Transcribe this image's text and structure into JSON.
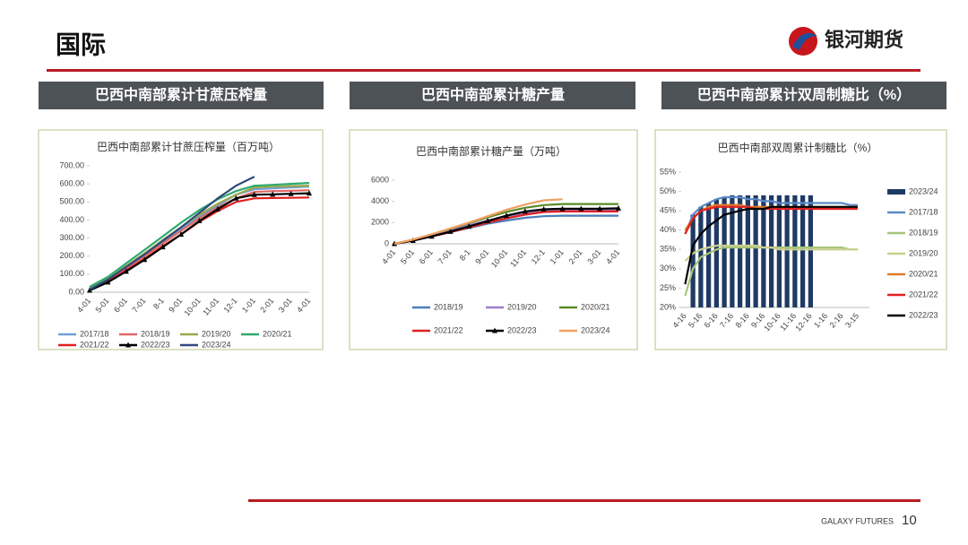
{
  "header": {
    "title": "国际",
    "logo": "银河期货"
  },
  "sections": [
    "巴西中南部累计甘蔗压榨量",
    "巴西中南部累计糖产量",
    "巴西中南部累计双周制糖比（%）"
  ],
  "footer": {
    "brand": "GALAXY FUTURES",
    "page": "10"
  },
  "chart_data": [
    {
      "type": "line",
      "title": "巴西中南部累计甘蔗压榨量（百万吨）",
      "categories": [
        "4-01",
        "5-01",
        "6-01",
        "7-01",
        "8-1",
        "9-01",
        "10-01",
        "11-01",
        "12-1",
        "1-01",
        "2-01",
        "3-01",
        "4-01"
      ],
      "ylim": [
        0,
        700
      ],
      "yticks": [
        {
          "value": 0,
          "label": "0.00"
        },
        {
          "value": 100,
          "label": "100.00"
        },
        {
          "value": 200,
          "label": "200.00"
        },
        {
          "value": 300,
          "label": "300.00"
        },
        {
          "value": 400,
          "label": "400.00"
        },
        {
          "value": 500,
          "label": "500.00"
        },
        {
          "value": 600,
          "label": "600.00"
        },
        {
          "value": 700,
          "label": "700.00"
        }
      ],
      "legend": "bottom",
      "series": [
        {
          "name": "2017/18",
          "color": "#6f9fd8",
          "values": [
            20,
            70,
            140,
            210,
            280,
            350,
            420,
            480,
            540,
            570,
            575,
            580,
            585
          ]
        },
        {
          "name": "2018/19",
          "color": "#e06666",
          "values": [
            15,
            65,
            130,
            200,
            270,
            340,
            410,
            470,
            520,
            555,
            560,
            562,
            565
          ]
        },
        {
          "name": "2019/20",
          "color": "#9aa84a",
          "values": [
            25,
            75,
            145,
            215,
            290,
            360,
            430,
            490,
            540,
            580,
            585,
            588,
            590
          ]
        },
        {
          "name": "2020/21",
          "color": "#2eaa6e",
          "values": [
            30,
            85,
            160,
            235,
            310,
            385,
            455,
            515,
            560,
            590,
            595,
            600,
            605
          ]
        },
        {
          "name": "2021/22",
          "color": "#e02020",
          "values": [
            15,
            60,
            120,
            185,
            255,
            320,
            390,
            450,
            500,
            520,
            522,
            523,
            525
          ]
        },
        {
          "name": "2022/23",
          "color": "#000000",
          "marker": "triangle",
          "values": [
            10,
            55,
            115,
            180,
            250,
            320,
            395,
            460,
            520,
            540,
            542,
            545,
            548
          ]
        },
        {
          "name": "2023/24",
          "color": "#2f4a7a",
          "values": [
            15,
            70,
            140,
            210,
            285,
            360,
            440,
            520,
            590,
            640,
            null,
            null,
            null
          ]
        }
      ]
    },
    {
      "type": "line",
      "title": "巴西中南部累计糖产量（万吨）",
      "categories": [
        "4-01",
        "5-01",
        "6-01",
        "7-01",
        "8-1",
        "9-01",
        "10-01",
        "11-01",
        "12-1",
        "1-01",
        "2-01",
        "3-01",
        "4-01"
      ],
      "ylim": [
        0,
        6000
      ],
      "yticks": [
        0,
        2000,
        4000,
        6000
      ],
      "legend": "bottom",
      "series": [
        {
          "name": "2018/19",
          "color": "#4a7ebb",
          "values": [
            0,
            300,
            700,
            1100,
            1500,
            1900,
            2200,
            2450,
            2600,
            2650,
            2650,
            2650,
            2650
          ]
        },
        {
          "name": "2019/20",
          "color": "#9b7fc8",
          "values": [
            0,
            350,
            800,
            1250,
            1750,
            2200,
            2600,
            2900,
            3100,
            3150,
            3150,
            3150,
            3150
          ]
        },
        {
          "name": "2020/21",
          "color": "#5a8a2a",
          "values": [
            0,
            400,
            900,
            1400,
            1950,
            2500,
            3000,
            3400,
            3650,
            3750,
            3750,
            3750,
            3750
          ]
        },
        {
          "name": "2021/22",
          "color": "#e02020",
          "values": [
            0,
            300,
            700,
            1100,
            1550,
            2000,
            2400,
            2750,
            3000,
            3050,
            3050,
            3050,
            3050
          ]
        },
        {
          "name": "2022/23",
          "color": "#000000",
          "marker": "triangle",
          "values": [
            0,
            300,
            700,
            1150,
            1650,
            2150,
            2650,
            3050,
            3250,
            3300,
            3300,
            3300,
            3350
          ]
        },
        {
          "name": "2023/24",
          "color": "#f0a060",
          "values": [
            0,
            400,
            900,
            1450,
            2000,
            2600,
            3200,
            3700,
            4100,
            4200,
            null,
            null,
            null
          ]
        }
      ]
    },
    {
      "type": "combo",
      "title": "巴西中南部双周累计制糖比（%）",
      "categories": [
        "4-16",
        null,
        "5-16",
        null,
        "6-16",
        null,
        "7-16",
        null,
        "8-16",
        null,
        "9-16",
        null,
        "10-16",
        null,
        "11-16",
        null,
        "12-16",
        null,
        "1-16",
        null,
        "2-16",
        null,
        "3-15",
        null
      ],
      "ylim": [
        20,
        55
      ],
      "yticks": [
        {
          "value": 20,
          "label": "20%"
        },
        {
          "value": 25,
          "label": "25%"
        },
        {
          "value": 30,
          "label": "30%"
        },
        {
          "value": 35,
          "label": "35%"
        },
        {
          "value": 40,
          "label": "40%"
        },
        {
          "value": 45,
          "label": "45%"
        },
        {
          "value": 50,
          "label": "50%"
        },
        {
          "value": 55,
          "label": "55%"
        }
      ],
      "legend": "right",
      "series": [
        {
          "name": "2023/24",
          "color": "#1f3a64",
          "kind": "bar",
          "values": [
            null,
            44,
            46,
            47,
            48,
            48.5,
            49,
            49,
            49,
            49,
            49,
            49,
            49,
            49,
            49,
            49,
            49,
            null,
            null,
            null,
            null,
            null,
            null,
            null
          ]
        },
        {
          "name": "2017/18",
          "color": "#5b8ac6",
          "values": [
            39,
            44,
            46,
            47,
            48,
            48.5,
            48.5,
            48.5,
            48,
            48,
            47.5,
            47.5,
            47,
            47,
            47,
            47,
            47,
            47,
            47,
            47,
            47,
            46.5,
            46.5,
            null
          ]
        },
        {
          "name": "2018/19",
          "color": "#a8c47a",
          "values": [
            23,
            30,
            33,
            34,
            35,
            35.5,
            35.5,
            35.5,
            35.5,
            35.5,
            35.5,
            35.5,
            35.5,
            35.5,
            35.5,
            35.5,
            35.5,
            35.5,
            35.5,
            35.5,
            35.5,
            35,
            35,
            null
          ]
        },
        {
          "name": "2019/20",
          "color": "#c9cf8e",
          "values": [
            32,
            34,
            35,
            35.5,
            36,
            36,
            36,
            36,
            36,
            36,
            35.5,
            35.5,
            35,
            35,
            35,
            35,
            35,
            35,
            35,
            35,
            35,
            35,
            35,
            null
          ]
        },
        {
          "name": "2020/21",
          "color": "#e07b28",
          "values": [
            40,
            43,
            45,
            46,
            46.5,
            46.5,
            46.5,
            46.5,
            46,
            46,
            46,
            46,
            46,
            46,
            46,
            46,
            46,
            46,
            46,
            46,
            46,
            46,
            46,
            null
          ]
        },
        {
          "name": "2021/22",
          "color": "#e02020",
          "values": [
            39,
            43,
            45,
            45.5,
            46,
            46,
            46,
            46,
            46,
            45.5,
            45.5,
            45.5,
            45.5,
            45.5,
            45.5,
            45.5,
            45.5,
            45.5,
            45.5,
            45.5,
            45.5,
            45.5,
            45.5,
            null
          ]
        },
        {
          "name": "2022/23",
          "color": "#000000",
          "values": [
            26,
            36,
            39,
            41,
            42.5,
            44,
            44.5,
            45,
            45.5,
            45.5,
            45.5,
            46,
            46,
            46,
            46,
            46,
            46,
            46,
            46,
            46,
            46,
            46,
            46,
            null
          ]
        }
      ]
    }
  ]
}
